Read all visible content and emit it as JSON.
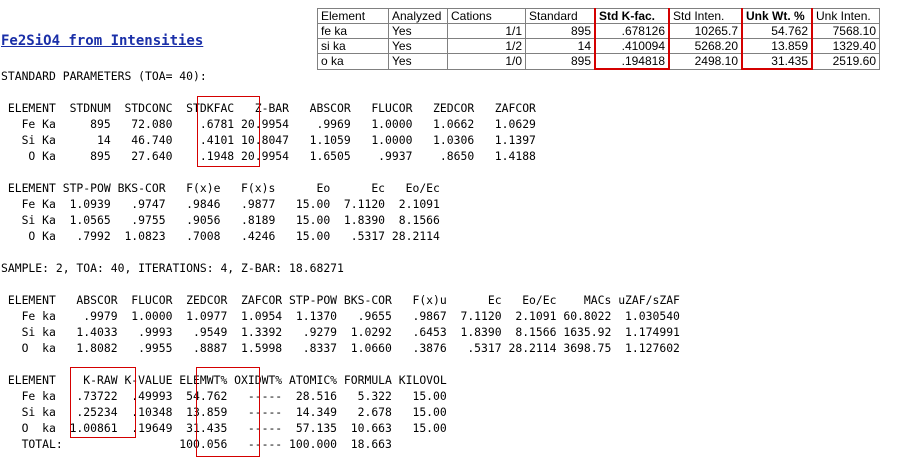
{
  "grid": {
    "headers": [
      "Element",
      "Analyzed",
      "Cations",
      "Standard",
      "Std K-fac.",
      "Std Inten.",
      "Unk Wt. %",
      "Unk Inten."
    ],
    "rows": [
      [
        "fe ka",
        "Yes",
        "1/1",
        "895",
        ".678126",
        "10265.7",
        "54.762",
        "7568.10"
      ],
      [
        "si ka",
        "Yes",
        "1/2",
        "14",
        ".410094",
        "5268.20",
        "13.859",
        "1329.40"
      ],
      [
        "o ka",
        "Yes",
        "1/0",
        "895",
        ".194818",
        "2498.10",
        "31.435",
        "2519.60"
      ]
    ]
  },
  "title": "Fe2SiO4 from Intensities",
  "text_lines": [
    "STANDARD PARAMETERS (TOA= 40):",
    "",
    " ELEMENT  STDNUM  STDCONC  STDKFAC   Z-BAR   ABSCOR   FLUCOR   ZEDCOR   ZAFCOR",
    "   Fe Ka     895   72.080    .6781 20.9954    .9969   1.0000   1.0662   1.0629",
    "   Si Ka      14   46.740    .4101 10.8047   1.1059   1.0000   1.0306   1.1397",
    "    O Ka     895   27.640    .1948 20.9954   1.6505    .9937    .8650   1.4188",
    "",
    " ELEMENT STP-POW BKS-COR   F(x)e   F(x)s      Eo      Ec   Eo/Ec",
    "   Fe Ka  1.0939   .9747   .9846   .9877   15.00  7.1120  2.1091",
    "   Si Ka  1.0565   .9755   .9056   .8189   15.00  1.8390  8.1566",
    "    O Ka   .7992  1.0823   .7008   .4246   15.00   .5317 28.2114",
    "",
    "SAMPLE: 2, TOA: 40, ITERATIONS: 4, Z-BAR: 18.68271",
    "",
    " ELEMENT   ABSCOR  FLUCOR  ZEDCOR  ZAFCOR STP-POW BKS-COR   F(x)u      Ec   Eo/Ec    MACs uZAF/sZAF",
    "   Fe ka    .9979  1.0000  1.0977  1.0954  1.1370   .9655   .9867  7.1120  2.1091 60.8022  1.030540",
    "   Si ka   1.4033   .9993   .9549  1.3392   .9279  1.0292   .6453  1.8390  8.1566 1635.92  1.174991",
    "   O  ka   1.8082   .9955   .8887  1.5998   .8337  1.0660   .3876   .5317 28.2114 3698.75  1.127602",
    "",
    " ELEMENT    K-RAW K-VALUE ELEMWT% OXIDWT% ATOMIC% FORMULA KILOVOL",
    "   Fe ka   .73722  .49993  54.762   -----  28.516   5.322   15.00",
    "   Si ka   .25234  .10348  13.859   -----  14.349   2.678   15.00",
    "   O  ka  1.00861  .19649  31.435   -----  57.135  10.663   15.00",
    "   TOTAL:                 100.056   ----- 100.000  18.663"
  ]
}
